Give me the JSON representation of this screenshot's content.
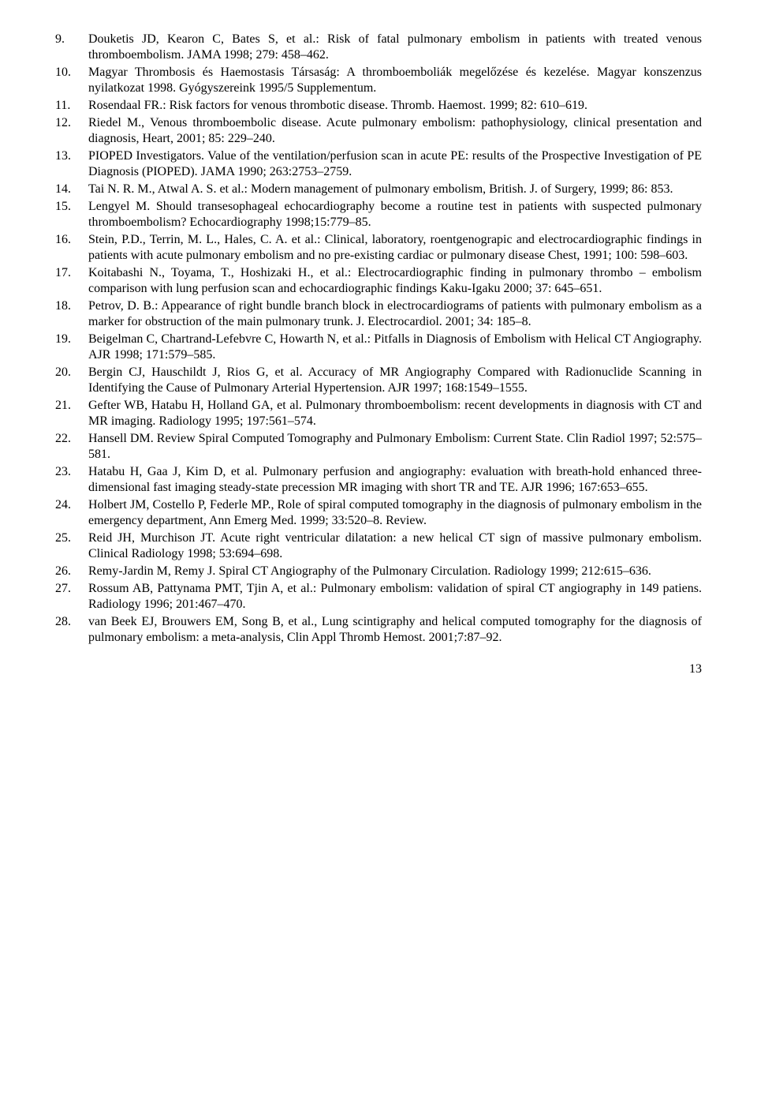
{
  "references": [
    {
      "num": "9.",
      "text": "Douketis JD, Kearon C, Bates S, et al.: Risk of fatal pulmonary embolism in patients with treated venous thromboembolism. JAMA 1998; 279: 458–462."
    },
    {
      "num": "10.",
      "text": "Magyar Thrombosis és Haemostasis Társaság: A thromboemboliák megelőzése és kezelése. Magyar konszenzus nyilatkozat 1998. Gyógyszereink 1995/5 Supplementum."
    },
    {
      "num": "11.",
      "text": "Rosendaal FR.: Risk factors for venous thrombotic disease. Thromb. Haemost. 1999; 82: 610–619."
    },
    {
      "num": "12.",
      "text": "Riedel M., Venous thromboembolic disease. Acute pulmonary embolism: pathophysiology, clinical presentation and diagnosis, Heart, 2001; 85: 229–240."
    },
    {
      "num": "13.",
      "text": "PIOPED Investigators. Value of the ventilation/perfusion scan in acute PE: results of the Prospective Investigation of PE Diagnosis (PIOPED). JAMA 1990; 263:2753–2759."
    },
    {
      "num": "14.",
      "text": "Tai N. R. M., Atwal A. S. et al.: Modern management of pulmonary embolism, British. J. of Surgery, 1999; 86: 853."
    },
    {
      "num": "15.",
      "text": "Lengyel M. Should transesophageal echocardiography become a routine test in patients with suspected pulmonary thromboembolism? Echocardiography 1998;15:779–85."
    },
    {
      "num": "16.",
      "text": "Stein, P.D., Terrin, M. L., Hales, C. A. et al.: Clinical, laboratory, roentgenograpic and electrocardiographic findings in patients with acute pulmonary embolism and no pre-existing cardiac or pulmonary disease Chest, 1991; 100: 598–603."
    },
    {
      "num": "17.",
      "text": "Koitabashi N., Toyama, T., Hoshizaki H., et al.: Electrocardiographic finding in pulmonary thrombo – embolism comparison with lung perfusion scan and echocardiographic findings Kaku-Igaku 2000; 37: 645–651."
    },
    {
      "num": "18.",
      "text": "Petrov, D. B.: Appearance of right bundle branch block in electrocardiograms of patients with pulmonary embolism as a marker for obstruction of the main pulmonary trunk. J. Electrocardiol. 2001; 34: 185–8."
    },
    {
      "num": "19.",
      "text": "Beigelman C, Chartrand-Lefebvre C, Howarth N, et al.: Pitfalls in Diagnosis of Embolism with Helical CT Angiography. AJR 1998; 171:579–585."
    },
    {
      "num": "20.",
      "text": "Bergin CJ, Hauschildt J, Rios G, et al. Accuracy of MR Angiography Compared with Radionuclide Scanning in Identifying the Cause of Pulmonary Arterial Hypertension. AJR 1997; 168:1549–1555."
    },
    {
      "num": "21.",
      "text": "Gefter WB, Hatabu H, Holland GA, et al. Pulmonary thromboembolism: recent developments in diagnosis with CT and MR imaging. Radiology 1995; 197:561–574."
    },
    {
      "num": "22.",
      "text": "Hansell DM. Review Spiral Computed Tomography and Pulmonary Embolism: Current State. Clin Radiol 1997; 52:575–581."
    },
    {
      "num": "23.",
      "text": "Hatabu H, Gaa J, Kim D, et al. Pulmonary perfusion and angiography: evaluation with breath-hold enhanced three-dimensional fast imaging steady-state precession MR imaging with short TR and TE. AJR 1996; 167:653–655."
    },
    {
      "num": "24.",
      "text": "Holbert JM, Costello P, Federle MP., Role of spiral computed tomography in the diagnosis of pulmonary embolism in the emergency department, Ann Emerg Med. 1999; 33:520–8. Review."
    },
    {
      "num": "25.",
      "text": "Reid JH, Murchison JT. Acute right ventricular dilatation: a new helical CT sign of massive pulmonary embolism. Clinical Radiology 1998; 53:694–698."
    },
    {
      "num": "26.",
      "text": "Remy-Jardin M, Remy J. Spiral CT Angiography of the Pulmonary Circulation. Radiology 1999; 212:615–636."
    },
    {
      "num": "27.",
      "text": "Rossum AB, Pattynama PMT, Tjin A, et al.: Pulmonary embolism: validation of spiral CT angiography in 149 patiens. Radiology 1996; 201:467–470."
    },
    {
      "num": "28.",
      "text": "van Beek EJ, Brouwers EM, Song B, et al., Lung scintigraphy and helical computed tomography for the diagnosis of pulmonary embolism: a meta-analysis, Clin Appl Thromb Hemost. 2001;7:87–92."
    }
  ],
  "page_number": "13"
}
